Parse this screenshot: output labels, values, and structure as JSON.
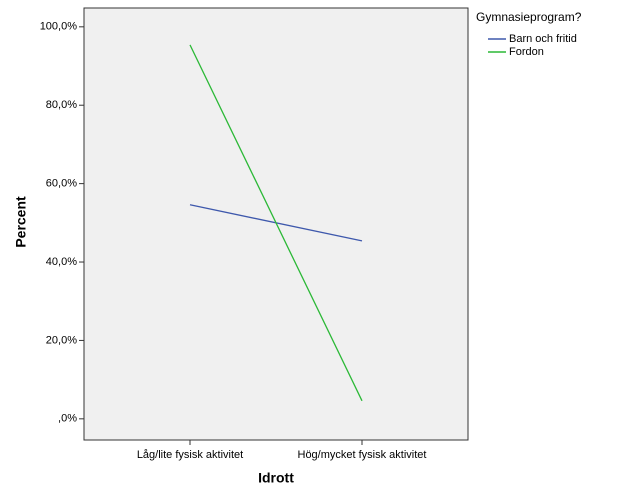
{
  "chart_data": {
    "type": "line",
    "x_label": "Idrott",
    "y_label": "Percent",
    "categories": [
      "Låg/lite fysisk aktivitet",
      "Hög/mycket fysisk aktivitet"
    ],
    "series": [
      {
        "name": "Barn och fritid",
        "color": "#3e58ac",
        "values": [
          54.6,
          45.4
        ]
      },
      {
        "name": "Fordon",
        "color": "#2bb836",
        "values": [
          95.4,
          4.6
        ]
      }
    ],
    "legend_title": "Gymnasieprogram?",
    "ylim": [
      -5.4,
      104.8
    ],
    "yticks": [
      {
        "value": 0,
        "label": ",0%"
      },
      {
        "value": 20,
        "label": "20,0%"
      },
      {
        "value": 40,
        "label": "40,0%"
      },
      {
        "value": 60,
        "label": "60,0%"
      },
      {
        "value": 80,
        "label": "80,0%"
      },
      {
        "value": 100,
        "label": "100,0%"
      }
    ],
    "grid": false
  }
}
